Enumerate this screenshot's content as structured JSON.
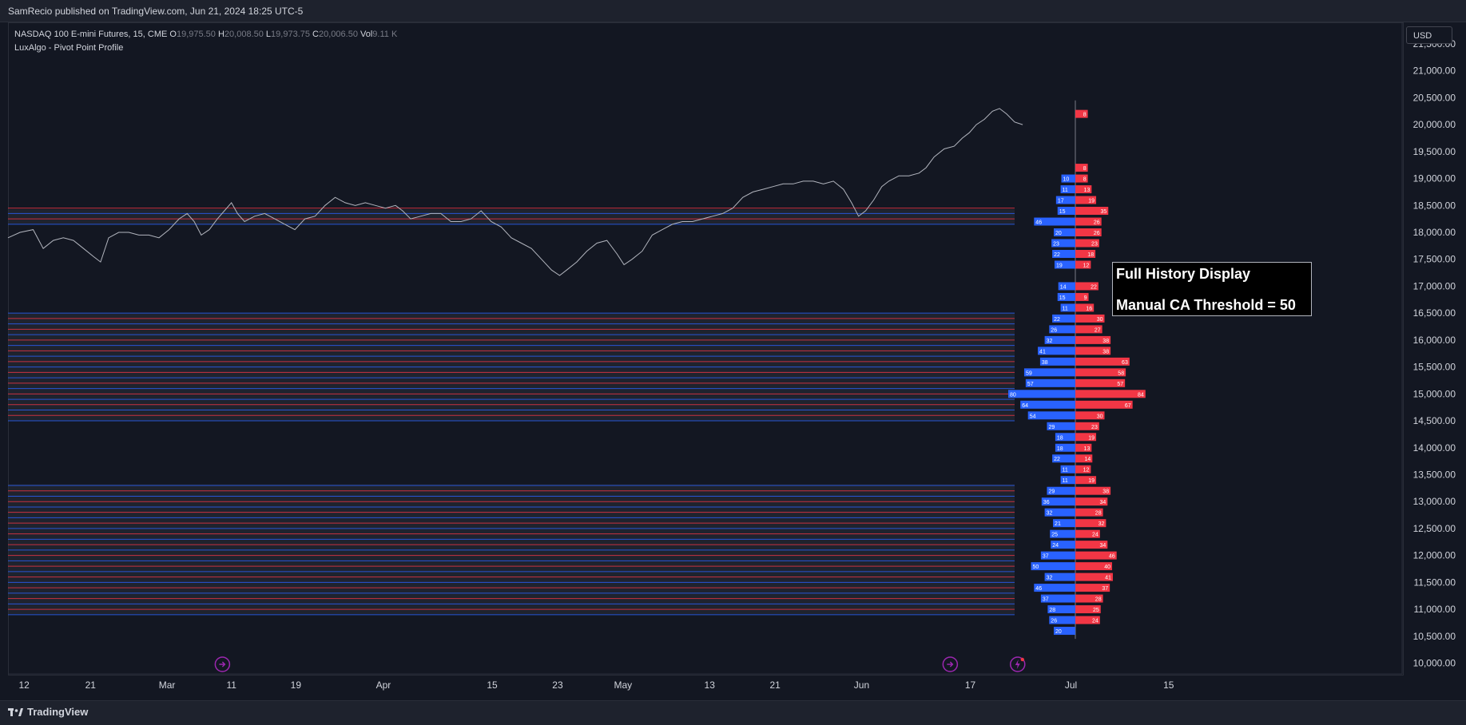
{
  "publisher_line": "SamRecio published on TradingView.com, Jun 21, 2024 18:25 UTC-5",
  "legend": {
    "symbol": "NASDAQ 100 E-mini Futures, 15, CME",
    "o_label": "O",
    "o_value": "19,975.50",
    "h_label": "H",
    "h_value": "20,008.50",
    "l_label": "L",
    "l_value": "19,973.75",
    "c_label": "C",
    "c_value": "20,006.50",
    "vol_label": "Vol",
    "vol_value": "9.11 K",
    "indicator": "LuxAlgo - Pivot Point Profile"
  },
  "currency": "USD",
  "infobox": {
    "line1": "Full History Display",
    "line2": "Manual CA Threshold = 50"
  },
  "footer_brand": "TradingView",
  "colors": {
    "background": "#131722",
    "bull": "#2962ff",
    "bear": "#f23645",
    "price_line": "#b2b5be",
    "axis_text": "#d1d4dc",
    "grid_band": "#2a2e39",
    "event_icon": "#9c27b0"
  },
  "chart_data": {
    "type": "line",
    "ylim": [
      9800,
      21900
    ],
    "y_ticks": [
      10000,
      10500,
      11000,
      11500,
      12000,
      12500,
      13000,
      13500,
      14000,
      14500,
      15000,
      15500,
      16000,
      16500,
      17000,
      17500,
      18000,
      18500,
      19000,
      19500,
      20000,
      20500,
      21000,
      21500
    ],
    "y_tick_labels": [
      "10,000.00",
      "10,500.00",
      "11,000.00",
      "11,500.00",
      "12,000.00",
      "12,500.00",
      "13,000.00",
      "13,500.00",
      "14,000.00",
      "14,500.00",
      "15,000.00",
      "15,500.00",
      "16,000.00",
      "16,500.00",
      "17,000.00",
      "17,500.00",
      "18,000.00",
      "18,500.00",
      "19,000.00",
      "19,500.00",
      "20,000.00",
      "20,500.00",
      "21,000.00",
      "21,500.00"
    ],
    "x_ticks": [
      {
        "label": "12",
        "t": 0.016
      },
      {
        "label": "21",
        "t": 0.082
      },
      {
        "label": "Mar",
        "t": 0.158
      },
      {
        "label": "11",
        "t": 0.222
      },
      {
        "label": "19",
        "t": 0.286
      },
      {
        "label": "Apr",
        "t": 0.373
      },
      {
        "label": "15",
        "t": 0.481
      },
      {
        "label": "23",
        "t": 0.546
      },
      {
        "label": "May",
        "t": 0.611
      },
      {
        "label": "13",
        "t": 0.697
      },
      {
        "label": "21",
        "t": 0.762
      },
      {
        "label": "Jun",
        "t": 0.848
      },
      {
        "label": "17",
        "t": 0.956
      },
      {
        "label": "Jul",
        "t": 1.056
      },
      {
        "label": "15",
        "t": 1.153
      }
    ],
    "price_series": [
      [
        0.0,
        17900
      ],
      [
        0.012,
        18000
      ],
      [
        0.025,
        18050
      ],
      [
        0.035,
        17700
      ],
      [
        0.045,
        17850
      ],
      [
        0.055,
        17900
      ],
      [
        0.065,
        17850
      ],
      [
        0.075,
        17700
      ],
      [
        0.085,
        17550
      ],
      [
        0.092,
        17450
      ],
      [
        0.1,
        17900
      ],
      [
        0.11,
        18000
      ],
      [
        0.12,
        18000
      ],
      [
        0.13,
        17950
      ],
      [
        0.14,
        17950
      ],
      [
        0.15,
        17900
      ],
      [
        0.16,
        18050
      ],
      [
        0.17,
        18250
      ],
      [
        0.178,
        18350
      ],
      [
        0.185,
        18200
      ],
      [
        0.192,
        17950
      ],
      [
        0.2,
        18050
      ],
      [
        0.208,
        18250
      ],
      [
        0.215,
        18400
      ],
      [
        0.222,
        18550
      ],
      [
        0.228,
        18350
      ],
      [
        0.235,
        18200
      ],
      [
        0.245,
        18300
      ],
      [
        0.255,
        18350
      ],
      [
        0.265,
        18250
      ],
      [
        0.275,
        18150
      ],
      [
        0.285,
        18050
      ],
      [
        0.295,
        18250
      ],
      [
        0.305,
        18300
      ],
      [
        0.315,
        18500
      ],
      [
        0.325,
        18650
      ],
      [
        0.335,
        18550
      ],
      [
        0.345,
        18500
      ],
      [
        0.355,
        18550
      ],
      [
        0.365,
        18500
      ],
      [
        0.375,
        18450
      ],
      [
        0.385,
        18500
      ],
      [
        0.392,
        18400
      ],
      [
        0.4,
        18250
      ],
      [
        0.41,
        18300
      ],
      [
        0.42,
        18350
      ],
      [
        0.43,
        18350
      ],
      [
        0.44,
        18200
      ],
      [
        0.45,
        18200
      ],
      [
        0.46,
        18250
      ],
      [
        0.47,
        18400
      ],
      [
        0.48,
        18200
      ],
      [
        0.49,
        18100
      ],
      [
        0.5,
        17900
      ],
      [
        0.51,
        17800
      ],
      [
        0.52,
        17700
      ],
      [
        0.53,
        17500
      ],
      [
        0.54,
        17300
      ],
      [
        0.548,
        17200
      ],
      [
        0.555,
        17300
      ],
      [
        0.565,
        17450
      ],
      [
        0.575,
        17650
      ],
      [
        0.585,
        17800
      ],
      [
        0.595,
        17850
      ],
      [
        0.605,
        17600
      ],
      [
        0.612,
        17400
      ],
      [
        0.62,
        17500
      ],
      [
        0.63,
        17650
      ],
      [
        0.64,
        17950
      ],
      [
        0.65,
        18050
      ],
      [
        0.66,
        18150
      ],
      [
        0.67,
        18200
      ],
      [
        0.68,
        18200
      ],
      [
        0.69,
        18250
      ],
      [
        0.7,
        18300
      ],
      [
        0.71,
        18350
      ],
      [
        0.72,
        18450
      ],
      [
        0.73,
        18650
      ],
      [
        0.74,
        18750
      ],
      [
        0.75,
        18800
      ],
      [
        0.76,
        18850
      ],
      [
        0.77,
        18900
      ],
      [
        0.78,
        18900
      ],
      [
        0.79,
        18950
      ],
      [
        0.8,
        18950
      ],
      [
        0.81,
        18900
      ],
      [
        0.82,
        18950
      ],
      [
        0.83,
        18800
      ],
      [
        0.838,
        18550
      ],
      [
        0.845,
        18300
      ],
      [
        0.852,
        18400
      ],
      [
        0.86,
        18600
      ],
      [
        0.868,
        18850
      ],
      [
        0.875,
        18950
      ],
      [
        0.885,
        19050
      ],
      [
        0.895,
        19050
      ],
      [
        0.905,
        19100
      ],
      [
        0.912,
        19200
      ],
      [
        0.92,
        19400
      ],
      [
        0.93,
        19550
      ],
      [
        0.94,
        19600
      ],
      [
        0.948,
        19750
      ],
      [
        0.955,
        19850
      ],
      [
        0.962,
        20000
      ],
      [
        0.97,
        20100
      ],
      [
        0.978,
        20250
      ],
      [
        0.985,
        20300
      ],
      [
        0.992,
        20200
      ],
      [
        1.0,
        20050
      ],
      [
        1.008,
        20000
      ]
    ],
    "band_zones": [
      {
        "lo": 18150,
        "hi": 18430
      },
      {
        "lo": 14500,
        "hi": 16500
      },
      {
        "lo": 10900,
        "hi": 13320
      }
    ],
    "profile_levels": [
      100,
      100,
      100,
      100
    ],
    "profile": [
      {
        "price": 20200,
        "bull": 0,
        "bear": 8
      },
      {
        "price": 20000,
        "bull": 0,
        "bear": 0
      },
      {
        "price": 19600,
        "bull": 0,
        "bear": 0
      },
      {
        "price": 19200,
        "bull": 0,
        "bear": 8
      },
      {
        "price": 19000,
        "bull": 10,
        "bear": 8
      },
      {
        "price": 18800,
        "bull": 11,
        "bear": 13
      },
      {
        "price": 18600,
        "bull": 17,
        "bear": 19
      },
      {
        "price": 18400,
        "bull": 15,
        "bear": 35
      },
      {
        "price": 18200,
        "bull": 46,
        "bear": 26
      },
      {
        "price": 18000,
        "bull": 20,
        "bear": 26
      },
      {
        "price": 17800,
        "bull": 23,
        "bear": 23
      },
      {
        "price": 17600,
        "bull": 22,
        "bear": 18
      },
      {
        "price": 17400,
        "bull": 19,
        "bear": 12
      },
      {
        "price": 17200,
        "bull": 0,
        "bear": 0
      },
      {
        "price": 17000,
        "bull": 14,
        "bear": 22
      },
      {
        "price": 16800,
        "bull": 15,
        "bear": 9
      },
      {
        "price": 16600,
        "bull": 11,
        "bear": 16
      },
      {
        "price": 16400,
        "bull": 22,
        "bear": 30
      },
      {
        "price": 16200,
        "bull": 26,
        "bear": 27
      },
      {
        "price": 16000,
        "bull": 32,
        "bear": 38
      },
      {
        "price": 15800,
        "bull": 41,
        "bear": 38
      },
      {
        "price": 15600,
        "bull": 38,
        "bear": 63
      },
      {
        "price": 15400,
        "bull": 59,
        "bear": 58
      },
      {
        "price": 15200,
        "bull": 57,
        "bear": 57
      },
      {
        "price": 15000,
        "bull": 80,
        "bear": 84
      },
      {
        "price": 14800,
        "bull": 64,
        "bear": 67
      },
      {
        "price": 14600,
        "bull": 54,
        "bear": 30
      },
      {
        "price": 14400,
        "bull": 29,
        "bear": 23
      },
      {
        "price": 14200,
        "bull": 18,
        "bear": 19
      },
      {
        "price": 14000,
        "bull": 18,
        "bear": 13
      },
      {
        "price": 13800,
        "bull": 22,
        "bear": 14
      },
      {
        "price": 13600,
        "bull": 11,
        "bear": 12
      },
      {
        "price": 13400,
        "bull": 11,
        "bear": 19
      },
      {
        "price": 13200,
        "bull": 29,
        "bear": 38
      },
      {
        "price": 13000,
        "bull": 36,
        "bear": 34
      },
      {
        "price": 12800,
        "bull": 32,
        "bear": 28
      },
      {
        "price": 12600,
        "bull": 21,
        "bear": 32
      },
      {
        "price": 12400,
        "bull": 25,
        "bear": 24
      },
      {
        "price": 12200,
        "bull": 24,
        "bear": 34
      },
      {
        "price": 12000,
        "bull": 37,
        "bear": 46
      },
      {
        "price": 11800,
        "bull": 50,
        "bear": 40
      },
      {
        "price": 11600,
        "bull": 32,
        "bear": 41
      },
      {
        "price": 11400,
        "bull": 46,
        "bear": 37
      },
      {
        "price": 11200,
        "bull": 37,
        "bear": 28
      },
      {
        "price": 11000,
        "bull": 28,
        "bear": 25
      },
      {
        "price": 10800,
        "bull": 26,
        "bear": 24
      },
      {
        "price": 10600,
        "bull": 20,
        "bear": 0
      }
    ],
    "event_markers": [
      {
        "t": 0.213,
        "kind": "forward-arrow"
      },
      {
        "t": 0.936,
        "kind": "forward-arrow"
      },
      {
        "t": 1.003,
        "kind": "lightning"
      }
    ]
  }
}
